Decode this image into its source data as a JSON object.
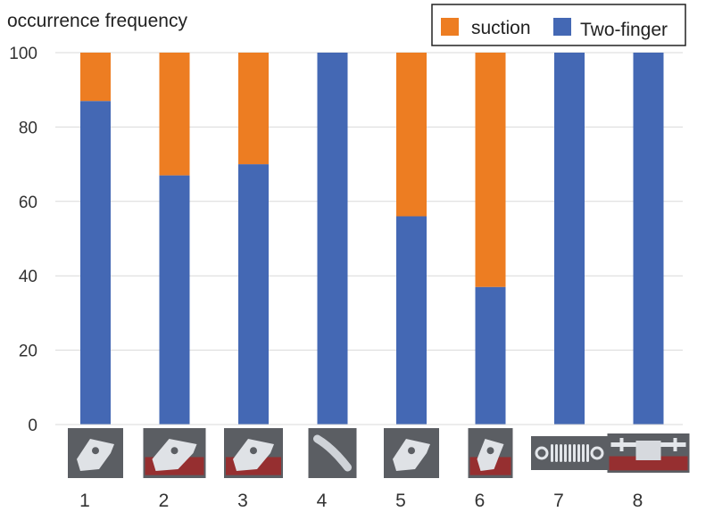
{
  "chart_data": {
    "type": "bar",
    "stacked": true,
    "ylabel": "occurrence frequency",
    "ylim": [
      0,
      100
    ],
    "yticks": [
      0,
      20,
      40,
      60,
      80,
      100
    ],
    "grid": true,
    "legend_position": "top-right",
    "categories": [
      "1",
      "2",
      "3",
      "4",
      "5",
      "6",
      "7",
      "8"
    ],
    "series": [
      {
        "name": "Two-finger",
        "color": "#4468b4",
        "values": [
          87,
          67,
          70,
          100,
          56,
          37,
          100,
          100
        ]
      },
      {
        "name": "suction",
        "color": "#ed7d22",
        "values": [
          13,
          33,
          30,
          0,
          44,
          63,
          0,
          0
        ]
      }
    ],
    "legend_order": [
      "suction",
      "Two-finger"
    ],
    "category_images": [
      "bracket-part-thumbnail",
      "plate-part-thumbnail",
      "bent-frame-part-thumbnail",
      "curved-link-part-thumbnail",
      "clamp-part-thumbnail",
      "stamped-bracket-part-thumbnail",
      "coil-spring-thumbnail",
      "shaft-assembly-thumbnail"
    ]
  }
}
